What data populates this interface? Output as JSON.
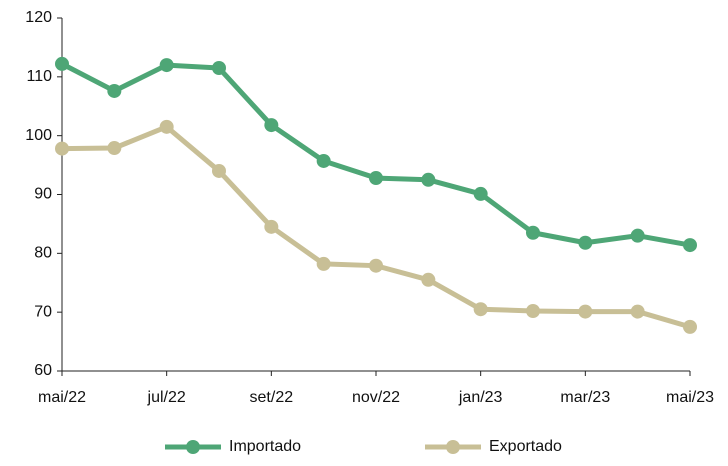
{
  "chart_data": {
    "type": "line",
    "categories": [
      "mai/22",
      null,
      "jul/22",
      null,
      "set/22",
      null,
      "nov/22",
      null,
      "jan/23",
      null,
      "mar/23",
      null,
      "mai/23"
    ],
    "series": [
      {
        "name": "Importado",
        "color": "#4ea676",
        "values": [
          112.2,
          107.6,
          112.0,
          111.5,
          101.8,
          95.7,
          92.8,
          92.5,
          90.1,
          83.5,
          81.8,
          83.0,
          81.4
        ]
      },
      {
        "name": "Exportado",
        "color": "#c8bf96",
        "values": [
          97.8,
          97.9,
          101.5,
          94.0,
          84.5,
          78.2,
          77.9,
          75.5,
          70.5,
          70.2,
          70.1,
          70.1,
          67.5
        ]
      }
    ],
    "ylim": [
      60,
      120
    ],
    "yticks": [
      60,
      70,
      80,
      90,
      100,
      110,
      120
    ],
    "grid": false,
    "legend": "bottom"
  }
}
